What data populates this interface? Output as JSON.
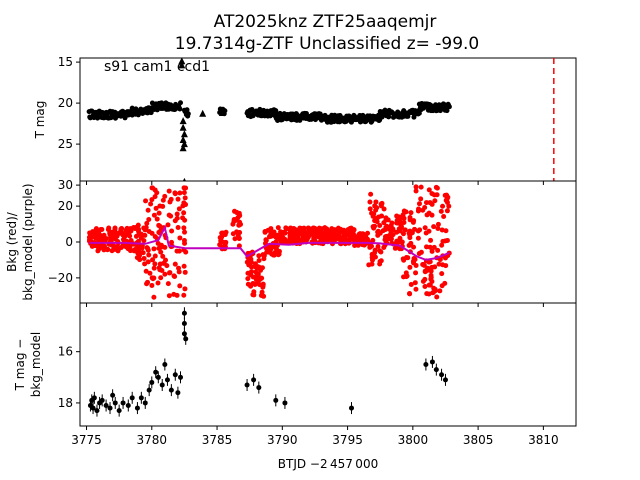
{
  "title_line1": "AT2025knz  ZTF25aaqemjr",
  "title_line2": "19.7314g-ZTF Unclassified z= -99.0",
  "xlabel": "BTJD −2 457 000",
  "chart_data": [
    {
      "type": "scatter",
      "panel": "top",
      "ylabel": "T mag",
      "annotation": "s91 cam1 ccd1",
      "xlim": [
        3774.5,
        3812.5
      ],
      "ylim": [
        29.5,
        14.5
      ],
      "y_inverted": true,
      "yticks": [
        15,
        20,
        25,
        30
      ],
      "vline": {
        "x": 3810.8,
        "color": "#ff0000",
        "style": "dashed"
      },
      "series": [
        {
          "label": "lc",
          "marker": "circle",
          "color": "#000000",
          "segments": [
            {
              "x0": 3775.2,
              "x1": 3778.5,
              "y": 21.4
            },
            {
              "x0": 3778.5,
              "x1": 3780.0,
              "y": 21.0
            },
            {
              "x0": 3780.0,
              "x1": 3782.2,
              "y": 20.4
            },
            {
              "x0": 3782.5,
              "x1": 3782.8,
              "y": 21.2
            },
            {
              "x0": 3785.2,
              "x1": 3785.6,
              "y": 21.1
            },
            {
              "x0": 3787.3,
              "x1": 3789.5,
              "y": 21.2
            },
            {
              "x0": 3789.5,
              "x1": 3793.0,
              "y": 21.7
            },
            {
              "x0": 3793.0,
              "x1": 3797.5,
              "y": 21.9
            },
            {
              "x0": 3797.5,
              "x1": 3800.5,
              "y": 21.3
            },
            {
              "x0": 3800.5,
              "x1": 3802.8,
              "y": 20.5
            }
          ]
        },
        {
          "label": "upper limits",
          "marker": "triangle",
          "color": "#000000",
          "points": [
            [
              3782.3,
              14.9
            ],
            [
              3782.3,
              15.4
            ],
            [
              3782.4,
              22.2
            ],
            [
              3782.4,
              23.0
            ],
            [
              3782.5,
              23.8
            ],
            [
              3782.4,
              24.5
            ],
            [
              3782.5,
              25.0
            ],
            [
              3782.4,
              25.5
            ],
            [
              3782.5,
              29.6
            ],
            [
              3783.9,
              21.3
            ],
            [
              3785.4,
              21.2
            ]
          ]
        }
      ]
    },
    {
      "type": "scatter",
      "panel": "middle",
      "ylabel_line1": "Bkg (red)/",
      "ylabel_line2": "bkg_model (purple)",
      "xlim": [
        3774.5,
        3812.5
      ],
      "ylim": [
        -34,
        34
      ],
      "yticks": [
        -20,
        0,
        20
      ],
      "series": [
        {
          "name": "Bkg",
          "color": "#ff0000",
          "marker": "circle",
          "segments": [
            {
              "x0": 3775.2,
              "x1": 3778.6,
              "y_lo": -5,
              "y_hi": 8
            },
            {
              "x0": 3778.6,
              "x1": 3779.4,
              "y_lo": -10,
              "y_hi": 10
            },
            {
              "x0": 3779.4,
              "x1": 3780.2,
              "y_lo": -31,
              "y_hi": 31
            },
            {
              "x0": 3780.2,
              "x1": 3781.3,
              "y_lo": -25,
              "y_hi": 31
            },
            {
              "x0": 3781.3,
              "x1": 3782.6,
              "y_lo": -31,
              "y_hi": 31
            },
            {
              "x0": 3785.2,
              "x1": 3785.7,
              "y_lo": -4,
              "y_hi": 6
            },
            {
              "x0": 3786.2,
              "x1": 3786.8,
              "y_lo": -4,
              "y_hi": 20
            },
            {
              "x0": 3787.3,
              "x1": 3788.6,
              "y_lo": -31,
              "y_hi": -5
            },
            {
              "x0": 3788.6,
              "x1": 3789.8,
              "y_lo": -8,
              "y_hi": 8
            },
            {
              "x0": 3789.8,
              "x1": 3795.5,
              "y_lo": -1,
              "y_hi": 8
            },
            {
              "x0": 3795.5,
              "x1": 3796.6,
              "y_lo": -2,
              "y_hi": 5
            },
            {
              "x0": 3796.6,
              "x1": 3797.8,
              "y_lo": -14,
              "y_hi": 28
            },
            {
              "x0": 3797.8,
              "x1": 3799.2,
              "y_lo": -4,
              "y_hi": 15
            },
            {
              "x0": 3799.2,
              "x1": 3800.2,
              "y_lo": -31,
              "y_hi": 20
            },
            {
              "x0": 3800.2,
              "x1": 3802.8,
              "y_lo": -31,
              "y_hi": 31
            }
          ]
        },
        {
          "name": "bkg_model",
          "color": "#bf00bf",
          "marker": "line",
          "points": [
            [
              3775.2,
              -0.5
            ],
            [
              3776.5,
              -0.5
            ],
            [
              3778.0,
              -0.5
            ],
            [
              3779.5,
              -1.0
            ],
            [
              3780.5,
              1.0
            ],
            [
              3781.0,
              8.0
            ],
            [
              3781.3,
              -2.0
            ],
            [
              3782.6,
              -3.5
            ],
            [
              3785.2,
              -3.5
            ],
            [
              3786.8,
              -3.5
            ],
            [
              3787.3,
              -8.0
            ],
            [
              3788.5,
              -3.0
            ],
            [
              3789.0,
              -1.0
            ],
            [
              3790.5,
              -1.5
            ],
            [
              3792.0,
              -0.5
            ],
            [
              3795.0,
              -0.5
            ],
            [
              3796.5,
              -0.5
            ],
            [
              3797.5,
              -0.8
            ],
            [
              3799.0,
              -2.0
            ],
            [
              3800.3,
              -8.0
            ],
            [
              3801.0,
              -10.0
            ],
            [
              3801.8,
              -9.0
            ],
            [
              3802.8,
              -6.0
            ]
          ]
        }
      ]
    },
    {
      "type": "scatter",
      "panel": "bottom",
      "ylabel_line1": "T mag −",
      "ylabel_line2": "bkg_model",
      "xlim": [
        3774.5,
        3812.5
      ],
      "ylim": [
        18.9,
        14.1
      ],
      "y_inverted": true,
      "yticks": [
        16,
        18
      ],
      "xticks": [
        3775,
        3780,
        3785,
        3790,
        3795,
        3800,
        3805,
        3810
      ],
      "series": [
        {
          "name": "diff",
          "color": "#000000",
          "marker": "errorbar",
          "points": [
            [
              3775.3,
              18.1
            ],
            [
              3775.4,
              17.9
            ],
            [
              3775.5,
              18.2
            ],
            [
              3775.6,
              17.8
            ],
            [
              3775.8,
              18.3
            ],
            [
              3776.0,
              18.0
            ],
            [
              3776.2,
              17.9
            ],
            [
              3776.5,
              18.1
            ],
            [
              3776.8,
              18.2
            ],
            [
              3777.0,
              17.7
            ],
            [
              3777.2,
              18.0
            ],
            [
              3777.5,
              18.3
            ],
            [
              3777.8,
              18.0
            ],
            [
              3778.2,
              18.1
            ],
            [
              3778.5,
              17.8
            ],
            [
              3778.9,
              18.2
            ],
            [
              3779.2,
              17.8
            ],
            [
              3779.5,
              18.0
            ],
            [
              3779.8,
              17.5
            ],
            [
              3780.0,
              17.2
            ],
            [
              3780.3,
              16.8
            ],
            [
              3780.5,
              17.0
            ],
            [
              3780.8,
              17.3
            ],
            [
              3781.0,
              16.5
            ],
            [
              3781.2,
              17.1
            ],
            [
              3781.5,
              17.5
            ],
            [
              3781.8,
              16.9
            ],
            [
              3782.0,
              17.6
            ],
            [
              3782.2,
              17.0
            ],
            [
              3782.5,
              14.5
            ],
            [
              3782.5,
              14.9
            ],
            [
              3782.5,
              15.3
            ],
            [
              3782.6,
              15.5
            ],
            [
              3787.3,
              17.3
            ],
            [
              3787.8,
              17.1
            ],
            [
              3788.2,
              17.4
            ],
            [
              3789.5,
              17.9
            ],
            [
              3790.2,
              18.0
            ],
            [
              3795.3,
              18.2
            ],
            [
              3801.0,
              16.5
            ],
            [
              3801.5,
              16.4
            ],
            [
              3801.8,
              16.7
            ],
            [
              3802.2,
              16.9
            ],
            [
              3802.5,
              17.1
            ]
          ]
        }
      ]
    }
  ]
}
